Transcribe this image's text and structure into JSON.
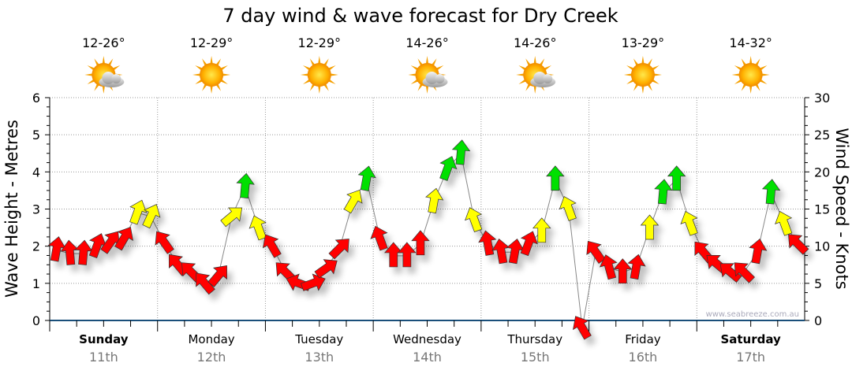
{
  "chart_data": {
    "type": "scatter",
    "title": "7 day wind & wave forecast for Dry Creek",
    "ylabel_left": "Wave Height - Metres",
    "ylabel_right": "Wind Speed - Knots",
    "ylim_left": [
      0,
      6
    ],
    "ylim_right": [
      0,
      30
    ],
    "yticks_left": [
      "0",
      "1",
      "2",
      "3",
      "4",
      "5",
      "6"
    ],
    "yticks_right": [
      "0",
      "5",
      "10",
      "15",
      "20",
      "25",
      "30"
    ],
    "grid": true,
    "watermark": "www.seabreeze.com.au",
    "color_thresholds_knots": {
      "yellow": 12,
      "green": 17
    },
    "colors": {
      "low": "#ff0000",
      "mid": "#ffff00",
      "high": "#00e000"
    },
    "days": [
      {
        "name": "Sunday",
        "date": "11th",
        "bold": true,
        "temp": "12-26°",
        "icon": "partly-cloudy",
        "wind_knots": [
          9.5,
          9,
          9,
          10,
          10.5,
          11,
          14.5,
          14
        ],
        "arrow_rotation_deg": [
          10,
          -5,
          5,
          20,
          35,
          30,
          20,
          25
        ]
      },
      {
        "name": "Monday",
        "date": "12th",
        "bold": false,
        "temp": "12-29°",
        "icon": "sunny",
        "wind_knots": [
          10.5,
          7.5,
          6.5,
          5,
          6,
          14,
          18,
          12.4
        ],
        "arrow_rotation_deg": [
          -35,
          -40,
          -45,
          -40,
          40,
          50,
          5,
          -20
        ]
      },
      {
        "name": "Tuesday",
        "date": "13th",
        "bold": false,
        "temp": "12-29°",
        "icon": "sunny",
        "wind_knots": [
          10,
          6.5,
          5,
          5,
          7,
          9.7,
          16,
          19
        ],
        "arrow_rotation_deg": [
          -30,
          -45,
          -70,
          70,
          55,
          45,
          30,
          10
        ]
      },
      {
        "name": "Wednesday",
        "date": "14th",
        "bold": false,
        "temp": "14-26°",
        "icon": "partly-cloudy",
        "wind_knots": [
          11,
          8.7,
          8.7,
          10.3,
          16,
          20.4,
          22.5,
          13.5
        ],
        "arrow_rotation_deg": [
          -20,
          0,
          0,
          0,
          10,
          20,
          5,
          -20
        ]
      },
      {
        "name": "Thursday",
        "date": "15th",
        "bold": false,
        "temp": "14-26°",
        "icon": "partly-cloudy",
        "wind_knots": [
          10.3,
          9.2,
          9.2,
          10.3,
          12,
          19,
          15,
          -1
        ],
        "arrow_rotation_deg": [
          -10,
          -10,
          10,
          20,
          0,
          0,
          -20,
          -30
        ]
      },
      {
        "name": "Friday",
        "date": "16th",
        "bold": false,
        "temp": "13-29°",
        "icon": "sunny",
        "wind_knots": [
          9.2,
          7.1,
          6.5,
          7.1,
          12.4,
          17.2,
          19,
          13
        ],
        "arrow_rotation_deg": [
          -35,
          -15,
          0,
          10,
          0,
          5,
          0,
          -20
        ]
      },
      {
        "name": "Saturday",
        "date": "17th",
        "bold": true,
        "temp": "14-32°",
        "icon": "sunny",
        "wind_knots": [
          9.2,
          7.6,
          6.5,
          6.5,
          9.2,
          17.2,
          13,
          10.3
        ],
        "arrow_rotation_deg": [
          -40,
          -50,
          -50,
          -45,
          10,
          5,
          -20,
          -45
        ]
      }
    ]
  }
}
